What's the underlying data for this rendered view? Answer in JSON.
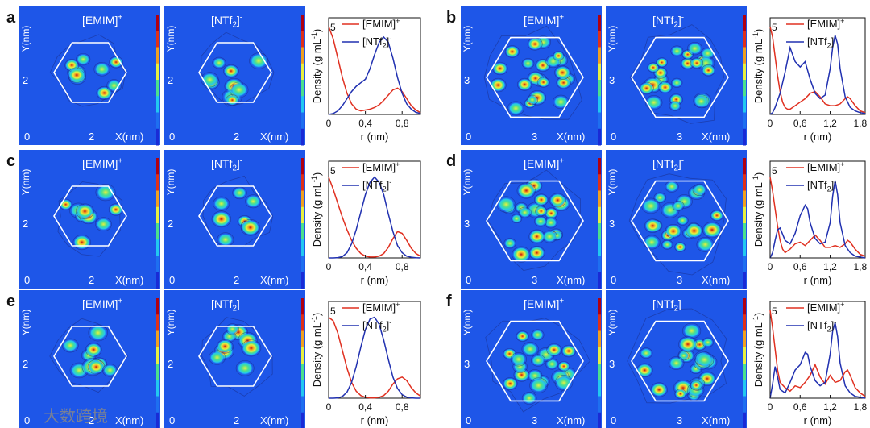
{
  "colors": {
    "map_bg": "#1e56e8",
    "cation": "#e03020",
    "anion": "#2030b0",
    "frame": "#ffffff",
    "colorbar": [
      "#1a2bd6",
      "#1e6ff0",
      "#22c8f0",
      "#4ce08c",
      "#e8f040",
      "#f0a020",
      "#e03018",
      "#b00010"
    ]
  },
  "watermark": "大数跨境",
  "panels": [
    {
      "label": "a",
      "species": [
        "[EMIM]",
        "[NTf2]"
      ],
      "charges": [
        "+",
        "-"
      ],
      "map_x_ticks": [
        "0",
        "2"
      ],
      "map_y_tick": "2",
      "map_x_label": "X(nm)",
      "map_y_label": "Y(nm)"
    },
    {
      "label": "b",
      "species": [
        "[EMIM]",
        "[NTf2]"
      ],
      "charges": [
        "+",
        "-"
      ],
      "map_x_ticks": [
        "0",
        "3"
      ],
      "map_y_tick": "3",
      "map_x_label": "X(nm)",
      "map_y_label": "Y(nm)"
    },
    {
      "label": "c",
      "species": [
        "[EMIM]",
        "[NTf2]"
      ],
      "charges": [
        "+",
        "-"
      ],
      "map_x_ticks": [
        "0",
        "2"
      ],
      "map_y_tick": "2",
      "map_x_label": "X(nm)",
      "map_y_label": "Y(nm)"
    },
    {
      "label": "d",
      "species": [
        "[EMIM]",
        "[NTf2]"
      ],
      "charges": [
        "+",
        "-"
      ],
      "map_x_ticks": [
        "0",
        "3"
      ],
      "map_y_tick": "3",
      "map_x_label": "X(nm)",
      "map_y_label": "Y(nm)"
    },
    {
      "label": "e",
      "species": [
        "[EMIM]",
        "[NTf2]"
      ],
      "charges": [
        "+",
        "-"
      ],
      "map_x_ticks": [
        "0",
        "2"
      ],
      "map_y_tick": "2",
      "map_x_label": "X(nm)",
      "map_y_label": "Y(nm)"
    },
    {
      "label": "f",
      "species": [
        "[EMIM]",
        "[NTf2]"
      ],
      "charges": [
        "+",
        "-"
      ],
      "map_x_ticks": [
        "0",
        "3"
      ],
      "map_y_tick": "3",
      "map_x_label": "X(nm)",
      "map_y_label": "Y(nm)"
    }
  ],
  "chart_data": [
    {
      "panel": "a",
      "type": "line",
      "xlabel": "r (nm)",
      "ylabel": "Density (g mL-1)",
      "xlim": [
        0,
        1.0
      ],
      "ylim": [
        0,
        5.5
      ],
      "x_ticks": [
        {
          "v": 0,
          "t": "0"
        },
        {
          "v": 0.4,
          "t": "0,4"
        },
        {
          "v": 0.8,
          "t": "0,8"
        }
      ],
      "y_ticks": [
        {
          "v": 5,
          "t": "5"
        }
      ],
      "legend": [
        {
          "name": "[EMIM]",
          "sup": "+"
        },
        {
          "name": "[NTf2]",
          "sup": "-"
        }
      ],
      "series": [
        {
          "name": "[EMIM]+",
          "x": [
            0,
            0.05,
            0.1,
            0.15,
            0.2,
            0.25,
            0.3,
            0.35,
            0.4,
            0.45,
            0.5,
            0.55,
            0.6,
            0.65,
            0.7,
            0.75,
            0.8,
            0.85,
            0.9,
            0.95,
            1.0
          ],
          "y": [
            5.0,
            4.3,
            3.2,
            2.1,
            1.2,
            0.6,
            0.3,
            0.2,
            0.25,
            0.3,
            0.4,
            0.55,
            0.8,
            1.1,
            1.4,
            1.5,
            1.3,
            0.9,
            0.5,
            0.25,
            0.1
          ]
        },
        {
          "name": "[NTf2]-",
          "x": [
            0,
            0.05,
            0.1,
            0.15,
            0.2,
            0.25,
            0.3,
            0.35,
            0.4,
            0.45,
            0.5,
            0.55,
            0.6,
            0.65,
            0.7,
            0.75,
            0.8,
            0.85,
            0.9,
            0.95,
            1.0
          ],
          "y": [
            0,
            0.05,
            0.2,
            0.5,
            0.9,
            1.3,
            1.6,
            1.8,
            2.0,
            2.6,
            3.4,
            4.1,
            4.4,
            4.1,
            3.2,
            2.1,
            1.2,
            0.6,
            0.3,
            0.12,
            0.05
          ]
        }
      ]
    },
    {
      "panel": "b",
      "type": "line",
      "xlabel": "r (nm)",
      "ylabel": "Density (g mL-1)",
      "xlim": [
        0,
        1.9
      ],
      "ylim": [
        0,
        5.5
      ],
      "x_ticks": [
        {
          "v": 0,
          "t": "0"
        },
        {
          "v": 0.6,
          "t": "0,6"
        },
        {
          "v": 1.2,
          "t": "1,2"
        },
        {
          "v": 1.8,
          "t": "1,8"
        }
      ],
      "y_ticks": [
        {
          "v": 5,
          "t": "5"
        }
      ],
      "legend": [
        {
          "name": "[EMIM]",
          "sup": "+"
        },
        {
          "name": "[NTf2]",
          "sup": "-"
        }
      ],
      "series": [
        {
          "name": "[EMIM]+",
          "x": [
            0,
            0.05,
            0.1,
            0.15,
            0.2,
            0.25,
            0.3,
            0.35,
            0.4,
            0.5,
            0.6,
            0.7,
            0.8,
            0.9,
            1.0,
            1.1,
            1.2,
            1.3,
            1.4,
            1.5,
            1.55,
            1.6,
            1.7,
            1.8,
            1.9
          ],
          "y": [
            5.0,
            4.4,
            3.3,
            2.2,
            1.3,
            0.7,
            0.4,
            0.3,
            0.3,
            0.5,
            0.7,
            0.9,
            1.2,
            1.3,
            1.0,
            0.6,
            0.5,
            0.5,
            0.6,
            0.9,
            1.0,
            0.9,
            0.5,
            0.2,
            0.1
          ]
        },
        {
          "name": "[NTf2]-",
          "x": [
            0,
            0.05,
            0.1,
            0.15,
            0.2,
            0.3,
            0.4,
            0.5,
            0.6,
            0.7,
            0.8,
            0.9,
            1.0,
            1.1,
            1.2,
            1.25,
            1.3,
            1.35,
            1.4,
            1.5,
            1.6,
            1.7,
            1.8,
            1.9
          ],
          "y": [
            0,
            0.1,
            0.4,
            0.8,
            1.2,
            2.4,
            3.8,
            3.0,
            2.7,
            3.0,
            2.0,
            1.2,
            0.9,
            1.1,
            2.6,
            3.8,
            4.5,
            4.0,
            2.6,
            1.0,
            0.4,
            0.2,
            0.1,
            0.05
          ]
        }
      ]
    },
    {
      "panel": "c",
      "type": "line",
      "xlabel": "r (nm)",
      "ylabel": "Density (g mL-1)",
      "xlim": [
        0,
        1.0
      ],
      "ylim": [
        0,
        5.5
      ],
      "x_ticks": [
        {
          "v": 0,
          "t": "0"
        },
        {
          "v": 0.4,
          "t": "0,4"
        },
        {
          "v": 0.8,
          "t": "0,8"
        }
      ],
      "y_ticks": [
        {
          "v": 5,
          "t": "5"
        }
      ],
      "legend": [
        {
          "name": "[EMIM]",
          "sup": "+"
        },
        {
          "name": "[NTf2]",
          "sup": "-"
        }
      ],
      "series": [
        {
          "name": "[EMIM]+",
          "x": [
            0,
            0.05,
            0.1,
            0.15,
            0.2,
            0.25,
            0.3,
            0.35,
            0.4,
            0.45,
            0.5,
            0.55,
            0.6,
            0.65,
            0.7,
            0.75,
            0.8,
            0.85,
            0.9,
            0.95,
            1.0
          ],
          "y": [
            4.6,
            3.9,
            3.1,
            2.3,
            1.6,
            1.0,
            0.55,
            0.25,
            0.1,
            0.05,
            0.05,
            0.1,
            0.25,
            0.6,
            1.1,
            1.5,
            1.4,
            1.0,
            0.55,
            0.25,
            0.1
          ]
        },
        {
          "name": "[NTf2]-",
          "x": [
            0,
            0.05,
            0.1,
            0.15,
            0.2,
            0.25,
            0.3,
            0.35,
            0.4,
            0.45,
            0.5,
            0.55,
            0.6,
            0.65,
            0.7,
            0.75,
            0.8,
            0.85,
            0.9,
            0.95,
            1.0
          ],
          "y": [
            0,
            0,
            0.02,
            0.08,
            0.3,
            0.8,
            1.6,
            2.6,
            3.6,
            4.3,
            4.6,
            4.3,
            3.6,
            2.5,
            1.5,
            0.7,
            0.3,
            0.1,
            0.04,
            0.01,
            0
          ]
        }
      ]
    },
    {
      "panel": "d",
      "type": "line",
      "xlabel": "r (nm)",
      "ylabel": "Density (g mL-1)",
      "xlim": [
        0,
        1.9
      ],
      "ylim": [
        0,
        5.5
      ],
      "x_ticks": [
        {
          "v": 0,
          "t": "0"
        },
        {
          "v": 0.6,
          "t": "0,6"
        },
        {
          "v": 1.2,
          "t": "1,2"
        },
        {
          "v": 1.8,
          "t": "1,8"
        }
      ],
      "y_ticks": [
        {
          "v": 5,
          "t": "5"
        }
      ],
      "legend": [
        {
          "name": "[EMIM]",
          "sup": "+"
        },
        {
          "name": "[NTf2]",
          "sup": "-"
        }
      ],
      "series": [
        {
          "name": "[EMIM]+",
          "x": [
            0,
            0.05,
            0.1,
            0.15,
            0.2,
            0.25,
            0.3,
            0.4,
            0.5,
            0.6,
            0.7,
            0.8,
            0.9,
            1.0,
            1.1,
            1.2,
            1.3,
            1.4,
            1.5,
            1.55,
            1.6,
            1.7,
            1.8,
            1.9
          ],
          "y": [
            4.6,
            3.8,
            2.8,
            1.8,
            1.0,
            0.5,
            0.3,
            0.5,
            0.8,
            0.9,
            0.7,
            1.0,
            1.3,
            1.0,
            0.6,
            0.6,
            0.7,
            0.6,
            0.8,
            1.0,
            0.9,
            0.5,
            0.2,
            0.1
          ]
        },
        {
          "name": "[NTf2]-",
          "x": [
            0,
            0.05,
            0.1,
            0.15,
            0.2,
            0.3,
            0.4,
            0.5,
            0.6,
            0.7,
            0.75,
            0.8,
            0.9,
            1.0,
            1.1,
            1.2,
            1.25,
            1.3,
            1.35,
            1.4,
            1.5,
            1.6,
            1.7,
            1.8,
            1.9
          ],
          "y": [
            0,
            0.3,
            1.0,
            1.6,
            1.7,
            1.0,
            0.8,
            1.4,
            2.4,
            3.0,
            2.8,
            2.0,
            1.1,
            0.8,
            0.9,
            2.0,
            3.5,
            4.4,
            3.6,
            2.0,
            0.7,
            0.3,
            0.1,
            0.05,
            0
          ]
        }
      ]
    },
    {
      "panel": "e",
      "type": "line",
      "xlabel": "r (nm)",
      "ylabel": "Density (g mL-1)",
      "xlim": [
        0,
        1.0
      ],
      "ylim": [
        0,
        5.5
      ],
      "x_ticks": [
        {
          "v": 0,
          "t": "0"
        },
        {
          "v": 0.4,
          "t": "0,4"
        },
        {
          "v": 0.8,
          "t": "0,8"
        }
      ],
      "y_ticks": [
        {
          "v": 5,
          "t": "5"
        }
      ],
      "legend": [
        {
          "name": "[EMIM]",
          "sup": "+"
        },
        {
          "name": "[NTf2]",
          "sup": "-"
        }
      ],
      "series": [
        {
          "name": "[EMIM]+",
          "x": [
            0,
            0.05,
            0.1,
            0.15,
            0.2,
            0.25,
            0.3,
            0.35,
            0.4,
            0.45,
            0.5,
            0.55,
            0.6,
            0.65,
            0.7,
            0.75,
            0.8,
            0.85,
            0.9,
            0.95,
            1.0
          ],
          "y": [
            4.6,
            4.4,
            3.7,
            2.7,
            1.7,
            0.9,
            0.4,
            0.15,
            0.05,
            0.02,
            0.02,
            0.05,
            0.15,
            0.4,
            0.8,
            1.1,
            1.2,
            1.0,
            0.6,
            0.3,
            0.12
          ]
        },
        {
          "name": "[NTf2]-",
          "x": [
            0,
            0.05,
            0.1,
            0.15,
            0.2,
            0.25,
            0.3,
            0.35,
            0.4,
            0.45,
            0.5,
            0.55,
            0.6,
            0.65,
            0.7,
            0.75,
            0.8,
            0.85,
            0.9,
            0.95,
            1.0
          ],
          "y": [
            0,
            0,
            0.02,
            0.1,
            0.35,
            0.9,
            1.8,
            2.9,
            3.9,
            4.5,
            4.6,
            4.2,
            3.3,
            2.2,
            1.2,
            0.55,
            0.2,
            0.06,
            0.02,
            0,
            0
          ]
        }
      ]
    },
    {
      "panel": "f",
      "type": "line",
      "xlabel": "r (nm)",
      "ylabel": "Density (g mL-1)",
      "xlim": [
        0,
        1.9
      ],
      "ylim": [
        0,
        5.5
      ],
      "x_ticks": [
        {
          "v": 0,
          "t": "0"
        },
        {
          "v": 0.6,
          "t": "0,6"
        },
        {
          "v": 1.2,
          "t": "1,2"
        },
        {
          "v": 1.8,
          "t": "1,8"
        }
      ],
      "y_ticks": [
        {
          "v": 5,
          "t": "5"
        }
      ],
      "legend": [
        {
          "name": "[EMIM]",
          "sup": "+"
        },
        {
          "name": "[NTf2]",
          "sup": "-"
        }
      ],
      "series": [
        {
          "name": "[EMIM]+",
          "x": [
            0,
            0.05,
            0.1,
            0.15,
            0.2,
            0.3,
            0.4,
            0.5,
            0.6,
            0.7,
            0.8,
            0.9,
            1.0,
            1.1,
            1.2,
            1.3,
            1.4,
            1.5,
            1.55,
            1.6,
            1.7,
            1.8,
            1.9
          ],
          "y": [
            5.0,
            4.0,
            2.8,
            1.6,
            0.9,
            0.6,
            0.4,
            0.7,
            0.6,
            0.9,
            1.3,
            1.9,
            1.2,
            0.8,
            1.3,
            0.9,
            1.0,
            1.5,
            1.6,
            1.3,
            0.6,
            0.3,
            0.1
          ]
        },
        {
          "name": "[NTf2]-",
          "x": [
            0,
            0.05,
            0.1,
            0.15,
            0.2,
            0.3,
            0.4,
            0.5,
            0.6,
            0.7,
            0.75,
            0.8,
            0.9,
            1.0,
            1.1,
            1.2,
            1.25,
            1.3,
            1.35,
            1.4,
            1.5,
            1.6,
            1.7,
            1.8,
            1.9
          ],
          "y": [
            0,
            0.8,
            1.8,
            1.2,
            0.5,
            0.3,
            0.9,
            1.6,
            1.9,
            2.6,
            2.5,
            1.8,
            1.0,
            0.7,
            0.9,
            2.5,
            3.8,
            4.3,
            3.5,
            2.0,
            0.7,
            0.3,
            0.1,
            0.05,
            0
          ]
        }
      ]
    }
  ]
}
